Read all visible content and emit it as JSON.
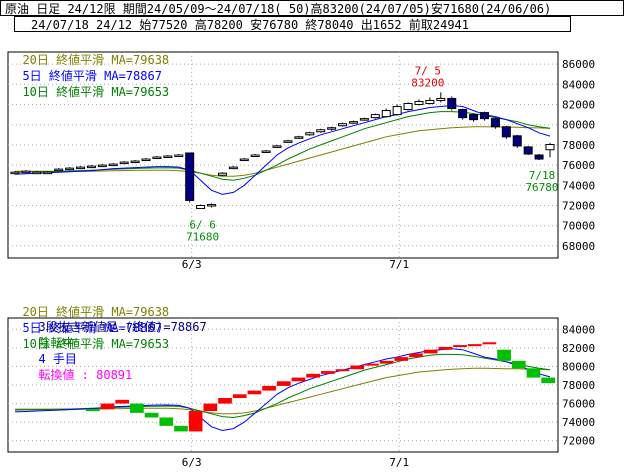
{
  "header": {
    "line1": "原油 日足 24/12限 期間24/05/09～24/07/18( 50)高83200(24/07/05)安71680(24/06/06)",
    "line2": "24/07/18 24/12 始77520 高78200 安76780 終78040 出1652 前取24941"
  },
  "legend_top": {
    "ma20": "20日 終値平滑 MA=79638",
    "ma5": "5日 終値平滑 MA=78867",
    "ma10": "10日 終値平滑 MA=79653"
  },
  "legend_bottom": {
    "ma20": "20日 終値平滑 MA=79638",
    "ma5": "5日 終値平滑 MA=78867",
    "ma10": "10日 終値平滑 MA=79653",
    "sanbon_prefix": "3段抜き新値足 (終値)=78867",
    "sanbon_state": "陰転中",
    "sanbon_count": "4 手目",
    "sanbon_reversal": "転換値 : 80891"
  },
  "colors": {
    "ma20": "#808000",
    "ma5": "#0000ff",
    "ma10": "#008000",
    "bull_candle": "#ffffff",
    "bear_candle": "#000080",
    "brick_up": "#ff0000",
    "brick_down": "#00c000",
    "high_label": "#e00000",
    "low_label": "#009000",
    "state_text": "#ff00ff",
    "grid": "#aaaaaa"
  },
  "chart_data": [
    {
      "type": "candlestick",
      "ylim": [
        67000,
        87000
      ],
      "yticks": [
        "86000",
        "84000",
        "82000",
        "80000",
        "78000",
        "76000",
        "74000",
        "72000",
        "70000",
        "68000"
      ],
      "x_labels": [
        "6/3",
        "7/1"
      ],
      "annotations": {
        "high_date": "7/ 5",
        "high_value": "83200",
        "low_date": "6/ 6",
        "low_value": "71680",
        "last_date": "7/18",
        "last_value": "76780"
      },
      "candles": [
        [
          75200,
          75400,
          75100,
          75300
        ],
        [
          75300,
          75500,
          75200,
          75400
        ],
        [
          75300,
          75400,
          75200,
          75300
        ],
        [
          75300,
          75400,
          75200,
          75300
        ],
        [
          75500,
          75700,
          75400,
          75600
        ],
        [
          75600,
          75800,
          75500,
          75700
        ],
        [
          75700,
          75900,
          75600,
          75800
        ],
        [
          75800,
          76000,
          75700,
          75900
        ],
        [
          75900,
          76100,
          75800,
          76000
        ],
        [
          76000,
          76200,
          75900,
          76100
        ],
        [
          76200,
          76400,
          76100,
          76300
        ],
        [
          76300,
          76500,
          76200,
          76400
        ],
        [
          76500,
          76700,
          76400,
          76600
        ],
        [
          76700,
          76900,
          76600,
          76800
        ],
        [
          76800,
          77000,
          76700,
          76900
        ],
        [
          76900,
          77100,
          76800,
          77000
        ],
        [
          77200,
          77200,
          72300,
          72500
        ],
        [
          71700,
          72100,
          71680,
          72000
        ],
        [
          72000,
          72200,
          71800,
          72100
        ],
        [
          75000,
          75300,
          74900,
          75200
        ],
        [
          75700,
          75900,
          75600,
          75800
        ],
        [
          76500,
          76700,
          76400,
          76600
        ],
        [
          76900,
          77100,
          76800,
          77000
        ],
        [
          77300,
          77500,
          77200,
          77400
        ],
        [
          77800,
          78000,
          77700,
          77900
        ],
        [
          78300,
          78500,
          78200,
          78400
        ],
        [
          78700,
          78900,
          78600,
          78800
        ],
        [
          79000,
          79300,
          78900,
          79200
        ],
        [
          79300,
          79600,
          79200,
          79500
        ],
        [
          79600,
          79800,
          79400,
          79700
        ],
        [
          79900,
          80200,
          79800,
          80100
        ],
        [
          80200,
          80400,
          80100,
          80300
        ],
        [
          80500,
          80700,
          80400,
          80600
        ],
        [
          80700,
          81100,
          80600,
          81000
        ],
        [
          80800,
          81600,
          80700,
          81400
        ],
        [
          81000,
          82000,
          80900,
          81800
        ],
        [
          81500,
          82200,
          81400,
          82100
        ],
        [
          82000,
          82500,
          81900,
          82300
        ],
        [
          82100,
          82700,
          82000,
          82400
        ],
        [
          82400,
          83200,
          82200,
          82600
        ],
        [
          82600,
          82800,
          81400,
          81600
        ],
        [
          81500,
          81600,
          80500,
          80700
        ],
        [
          81000,
          81100,
          80300,
          80500
        ],
        [
          81200,
          81300,
          80400,
          80600
        ],
        [
          80600,
          80700,
          79600,
          79800
        ],
        [
          79800,
          79900,
          78600,
          78800
        ],
        [
          78900,
          79000,
          77700,
          77900
        ],
        [
          77800,
          77900,
          77000,
          77100
        ],
        [
          77000,
          77100,
          76500,
          76600
        ],
        [
          77520,
          78200,
          76780,
          78040
        ]
      ],
      "ma5": [
        75100,
        75150,
        75200,
        75250,
        75300,
        75350,
        75400,
        75450,
        75550,
        75650,
        75700,
        75750,
        75800,
        75850,
        75850,
        75800,
        75500,
        74500,
        73500,
        73100,
        73300,
        74000,
        75000,
        76000,
        77000,
        77700,
        78200,
        78600,
        79000,
        79300,
        79600,
        79900,
        80200,
        80500,
        80800,
        81000,
        81300,
        81500,
        81700,
        81800,
        81900,
        81800,
        81400,
        81000,
        80800,
        80500,
        80100,
        79700,
        79200,
        78867
      ],
      "ma10": [
        75300,
        75320,
        75340,
        75360,
        75380,
        75420,
        75460,
        75500,
        75540,
        75580,
        75620,
        75660,
        75700,
        75720,
        75740,
        75700,
        75500,
        75200,
        74900,
        74600,
        74500,
        74700,
        75000,
        75500,
        76000,
        76600,
        77100,
        77600,
        78000,
        78400,
        78800,
        79200,
        79600,
        79900,
        80200,
        80500,
        80800,
        81000,
        81200,
        81300,
        81300,
        81250,
        81100,
        80900,
        80700,
        80500,
        80300,
        80000,
        79800,
        79653
      ],
      "ma20": [
        75400,
        75400,
        75400,
        75400,
        75400,
        75400,
        75400,
        75400,
        75420,
        75440,
        75460,
        75480,
        75500,
        75500,
        75500,
        75450,
        75350,
        75200,
        75000,
        74900,
        74900,
        75000,
        75200,
        75500,
        75800,
        76100,
        76400,
        76700,
        77000,
        77300,
        77600,
        77900,
        78200,
        78500,
        78800,
        79000,
        79200,
        79400,
        79500,
        79600,
        79700,
        79750,
        79800,
        79800,
        79780,
        79760,
        79740,
        79700,
        79680,
        79638
      ]
    },
    {
      "type": "three-line-break",
      "ylim": [
        71000,
        85000
      ],
      "yticks": [
        "84000",
        "82000",
        "80000",
        "78000",
        "76000",
        "74000",
        "72000"
      ],
      "x_labels": [
        "6/3",
        "7/1"
      ],
      "bricks": [
        {
          "dir": "down",
          "low": 75200,
          "high": 75400
        },
        {
          "dir": "up",
          "low": 75400,
          "high": 76000
        },
        {
          "dir": "up",
          "low": 76000,
          "high": 76400
        },
        {
          "dir": "down",
          "low": 75000,
          "high": 76000
        },
        {
          "dir": "down",
          "low": 74500,
          "high": 75000
        },
        {
          "dir": "down",
          "low": 73600,
          "high": 74500
        },
        {
          "dir": "down",
          "low": 73000,
          "high": 73600
        },
        {
          "dir": "up",
          "low": 73000,
          "high": 75200
        },
        {
          "dir": "up",
          "low": 75200,
          "high": 76000
        },
        {
          "dir": "up",
          "low": 76000,
          "high": 76600
        },
        {
          "dir": "up",
          "low": 76600,
          "high": 77000
        },
        {
          "dir": "up",
          "low": 77000,
          "high": 77400
        },
        {
          "dir": "up",
          "low": 77400,
          "high": 77900
        },
        {
          "dir": "up",
          "low": 77900,
          "high": 78400
        },
        {
          "dir": "up",
          "low": 78400,
          "high": 78800
        },
        {
          "dir": "up",
          "low": 78800,
          "high": 79200
        },
        {
          "dir": "up",
          "low": 79200,
          "high": 79500
        },
        {
          "dir": "up",
          "low": 79500,
          "high": 79700
        },
        {
          "dir": "up",
          "low": 79700,
          "high": 80100
        },
        {
          "dir": "up",
          "low": 80100,
          "high": 80300
        },
        {
          "dir": "up",
          "low": 80300,
          "high": 80600
        },
        {
          "dir": "up",
          "low": 80600,
          "high": 81000
        },
        {
          "dir": "up",
          "low": 81000,
          "high": 81400
        },
        {
          "dir": "up",
          "low": 81400,
          "high": 81800
        },
        {
          "dir": "up",
          "low": 81800,
          "high": 82100
        },
        {
          "dir": "up",
          "low": 82100,
          "high": 82300
        },
        {
          "dir": "up",
          "low": 82300,
          "high": 82400
        },
        {
          "dir": "up",
          "low": 82400,
          "high": 82600
        },
        {
          "dir": "down",
          "low": 80600,
          "high": 81800
        },
        {
          "dir": "down",
          "low": 79800,
          "high": 80600
        },
        {
          "dir": "down",
          "low": 78800,
          "high": 79800
        },
        {
          "dir": "down",
          "low": 78200,
          "high": 78800
        }
      ]
    }
  ]
}
